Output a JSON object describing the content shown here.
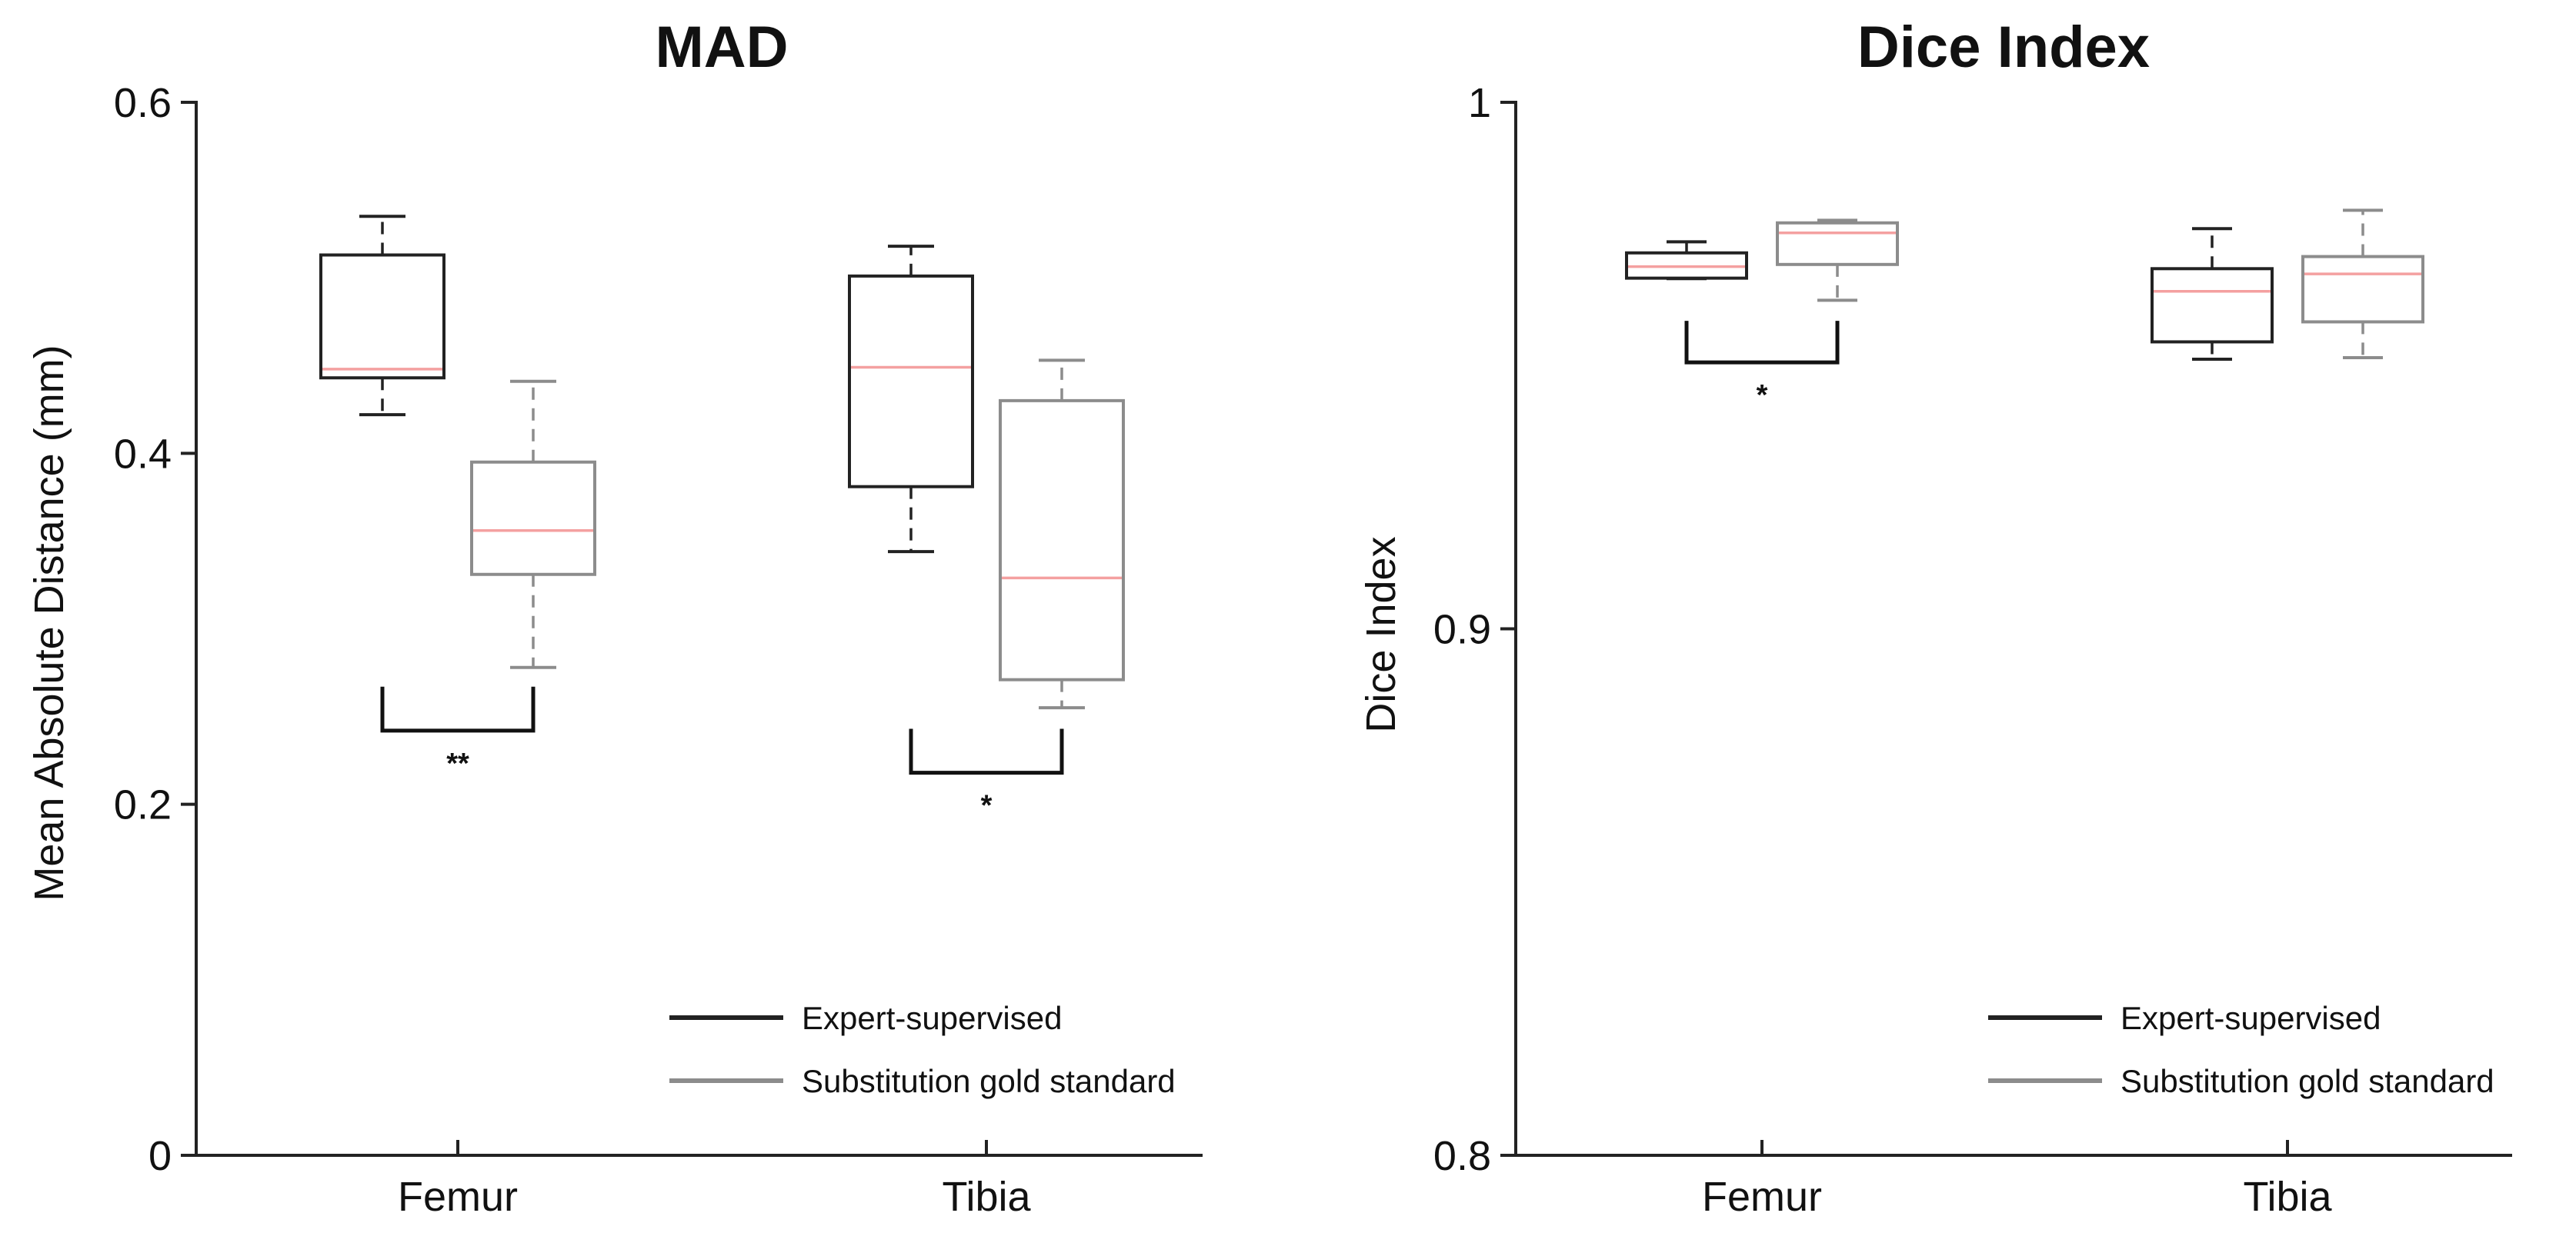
{
  "chart_data": [
    {
      "type": "box",
      "title": "MAD",
      "xlabel": "",
      "ylabel": "Mean Absolute Distance (mm)",
      "categories": [
        "Femur",
        "Tibia"
      ],
      "ylim": [
        0,
        0.6
      ],
      "yticks": [
        {
          "value": 0,
          "label": "0"
        },
        {
          "value": 0.2,
          "label": "0.2"
        },
        {
          "value": 0.4,
          "label": "0.4"
        },
        {
          "value": 0.6,
          "label": "0.6"
        }
      ],
      "series": [
        {
          "name": "Expert-supervised",
          "color": "#222222",
          "boxes": [
            {
              "category": "Femur",
              "whisker_low": 0.422,
              "q1": 0.443,
              "median": 0.448,
              "q3": 0.513,
              "whisker_high": 0.535
            },
            {
              "category": "Tibia",
              "whisker_low": 0.344,
              "q1": 0.381,
              "median": 0.449,
              "q3": 0.501,
              "whisker_high": 0.518
            }
          ]
        },
        {
          "name": "Substitution gold standard",
          "color": "#8c8c8c",
          "boxes": [
            {
              "category": "Femur",
              "whisker_low": 0.278,
              "q1": 0.331,
              "median": 0.356,
              "q3": 0.395,
              "whisker_high": 0.441
            },
            {
              "category": "Tibia",
              "whisker_low": 0.255,
              "q1": 0.271,
              "median": 0.329,
              "q3": 0.43,
              "whisker_high": 0.453
            }
          ]
        }
      ],
      "median_color": "#f4a0a0",
      "significance": [
        {
          "category": "Femur",
          "label": "**",
          "bracket_top": 0.267,
          "bracket_bottom": 0.242
        },
        {
          "category": "Tibia",
          "label": "*",
          "bracket_top": 0.243,
          "bracket_bottom": 0.218
        }
      ],
      "legend": [
        "Expert-supervised",
        "Substitution gold standard"
      ],
      "legend_position": "bottom-right",
      "grid": false
    },
    {
      "type": "box",
      "title": "Dice Index",
      "xlabel": "",
      "ylabel": "Dice Index",
      "categories": [
        "Femur",
        "Tibia"
      ],
      "ylim": [
        0.8,
        1.0
      ],
      "yticks": [
        {
          "value": 0.8,
          "label": "0.8"
        },
        {
          "value": 0.9,
          "label": "0.9"
        },
        {
          "value": 1.0,
          "label": "1"
        }
      ],
      "series": [
        {
          "name": "Expert-supervised",
          "color": "#222222",
          "boxes": [
            {
              "category": "Femur",
              "whisker_low": 0.9665,
              "q1": 0.9666,
              "median": 0.9688,
              "q3": 0.9714,
              "whisker_high": 0.9735
            },
            {
              "category": "Tibia",
              "whisker_low": 0.9512,
              "q1": 0.9545,
              "median": 0.9641,
              "q3": 0.9684,
              "whisker_high": 0.976
            }
          ]
        },
        {
          "name": "Substitution gold standard",
          "color": "#8c8c8c",
          "boxes": [
            {
              "category": "Femur",
              "whisker_low": 0.9624,
              "q1": 0.9692,
              "median": 0.9752,
              "q3": 0.9771,
              "whisker_high": 0.9776
            },
            {
              "category": "Tibia",
              "whisker_low": 0.9515,
              "q1": 0.9583,
              "median": 0.9674,
              "q3": 0.9707,
              "whisker_high": 0.9795
            }
          ]
        }
      ],
      "median_color": "#f4a0a0",
      "significance": [
        {
          "category": "Femur",
          "label": "*",
          "bracket_top": 0.9585,
          "bracket_bottom": 0.9506
        }
      ],
      "legend": [
        "Expert-supervised",
        "Substitution gold standard"
      ],
      "legend_position": "bottom-right",
      "grid": false
    }
  ]
}
